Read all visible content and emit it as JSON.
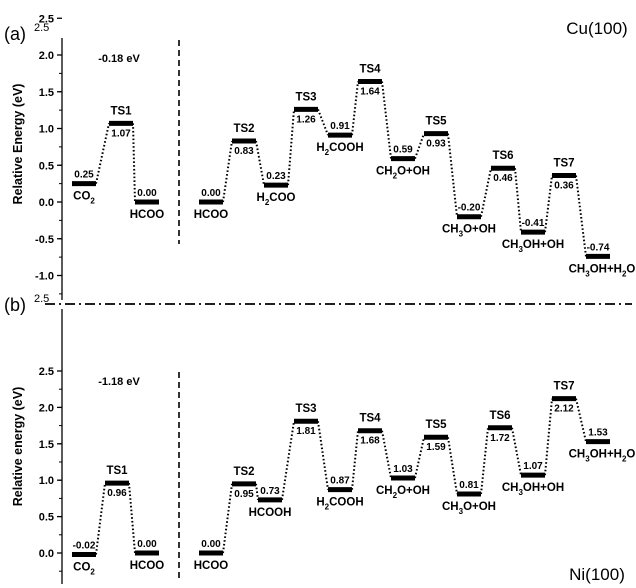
{
  "chart_data": [
    {
      "panel": "(a)",
      "type": "line",
      "metal": "Cu(100)",
      "ylabel": "Relative Energy (eV)",
      "ylim": [
        -1.25,
        2.5
      ],
      "yticks": [
        "2.5",
        "2.0",
        "1.5",
        "1.0",
        "0.5",
        "0.0",
        "-0.5",
        "-1.0"
      ],
      "left_annotation": "-0.18 eV",
      "segments": [
        {
          "levels": [
            {
              "label": "CO2",
              "value": 0.25,
              "value_text": "0.25",
              "kind": "species",
              "main": "CO",
              "sub": "2"
            },
            {
              "label": "TS1",
              "value": 1.07,
              "value_text": "1.07",
              "kind": "ts"
            },
            {
              "label": "HCOO",
              "value": 0.0,
              "value_text": "0.00",
              "kind": "species",
              "main": "HCOO"
            }
          ]
        },
        {
          "levels": [
            {
              "label": "HCOO",
              "value": 0.0,
              "value_text": "0.00",
              "kind": "species",
              "main": "HCOO"
            },
            {
              "label": "TS2",
              "value": 0.83,
              "value_text": "0.83",
              "kind": "ts"
            },
            {
              "label": "H2COO",
              "value": 0.23,
              "value_text": "0.23",
              "kind": "species",
              "main": "H",
              "sub": "2",
              "rest": "COO"
            },
            {
              "label": "TS3",
              "value": 1.26,
              "value_text": "1.26",
              "kind": "ts"
            },
            {
              "label": "H2COOH",
              "value": 0.91,
              "value_text": "0.91",
              "kind": "species",
              "main": "H",
              "sub": "2",
              "rest": "COOH"
            },
            {
              "label": "TS4",
              "value": 1.64,
              "value_text": "1.64",
              "kind": "ts"
            },
            {
              "label": "CH2O+OH",
              "value": 0.59,
              "value_text": "0.59",
              "kind": "species",
              "main": "CH",
              "sub": "2",
              "rest": "O+OH"
            },
            {
              "label": "TS5",
              "value": 0.93,
              "value_text": "0.93",
              "kind": "ts"
            },
            {
              "label": "CH3O+OH",
              "value": -0.2,
              "value_text": "-0.20",
              "kind": "species",
              "main": "CH",
              "sub": "3",
              "rest": "O+OH"
            },
            {
              "label": "TS6",
              "value": 0.46,
              "value_text": "0.46",
              "kind": "ts"
            },
            {
              "label": "CH3OH+OH",
              "value": -0.41,
              "value_text": "-0.41",
              "kind": "species",
              "main": "CH",
              "sub": "3",
              "rest": "OH+OH"
            },
            {
              "label": "TS7",
              "value": 0.36,
              "value_text": "0.36",
              "kind": "ts"
            },
            {
              "label": "CH3OH+H2O",
              "value": -0.74,
              "value_text": "-0.74",
              "kind": "species",
              "main": "CH",
              "sub": "3",
              "rest": "OH+H",
              "sub2": "2",
              "rest2": "O"
            }
          ]
        }
      ]
    },
    {
      "panel": "(b)",
      "type": "line",
      "metal": "Ni(100)",
      "ylabel": "Relative energy (eV)",
      "ylim": [
        -0.25,
        2.5
      ],
      "yticks": [
        "2.5",
        "2.0",
        "1.5",
        "1.0",
        "0.5",
        "0.0"
      ],
      "left_annotation": "-1.18 eV",
      "segments": [
        {
          "levels": [
            {
              "label": "CO2",
              "value": -0.02,
              "value_text": "-0.02",
              "kind": "species",
              "main": "CO",
              "sub": "2"
            },
            {
              "label": "TS1",
              "value": 0.96,
              "value_text": "0.96",
              "kind": "ts"
            },
            {
              "label": "HCOO",
              "value": 0.0,
              "value_text": "0.00",
              "kind": "species",
              "main": "HCOO"
            }
          ]
        },
        {
          "levels": [
            {
              "label": "HCOO",
              "value": 0.0,
              "value_text": "0.00",
              "kind": "species",
              "main": "HCOO"
            },
            {
              "label": "TS2",
              "value": 0.95,
              "value_text": "0.95",
              "kind": "ts"
            },
            {
              "label": "HCOOH",
              "value": 0.73,
              "value_text": "0.73",
              "kind": "species",
              "main": "HCOOH"
            },
            {
              "label": "TS3",
              "value": 1.81,
              "value_text": "1.81",
              "kind": "ts"
            },
            {
              "label": "H2COOH",
              "value": 0.87,
              "value_text": "0.87",
              "kind": "species",
              "main": "H",
              "sub": "2",
              "rest": "COOH"
            },
            {
              "label": "TS4",
              "value": 1.68,
              "value_text": "1.68",
              "kind": "ts"
            },
            {
              "label": "CH2O+OH",
              "value": 1.03,
              "value_text": "1.03",
              "kind": "species",
              "main": "CH",
              "sub": "2",
              "rest": "O+OH"
            },
            {
              "label": "TS5",
              "value": 1.59,
              "value_text": "1.59",
              "kind": "ts"
            },
            {
              "label": "CH3O+OH",
              "value": 0.81,
              "value_text": "0.81",
              "kind": "species",
              "main": "CH",
              "sub": "3",
              "rest": "O+OH"
            },
            {
              "label": "TS6",
              "value": 1.72,
              "value_text": "1.72",
              "kind": "ts"
            },
            {
              "label": "CH3OH+OH",
              "value": 1.07,
              "value_text": "1.07",
              "kind": "species",
              "main": "CH",
              "sub": "3",
              "rest": "OH+OH"
            },
            {
              "label": "TS7",
              "value": 2.12,
              "value_text": "2.12",
              "kind": "ts"
            },
            {
              "label": "CH3OH+H2O",
              "value": 1.53,
              "value_text": "1.53",
              "kind": "species",
              "main": "CH",
              "sub": "3",
              "rest": "OH+H",
              "sub2": "2",
              "rest2": "O"
            }
          ]
        }
      ]
    }
  ]
}
